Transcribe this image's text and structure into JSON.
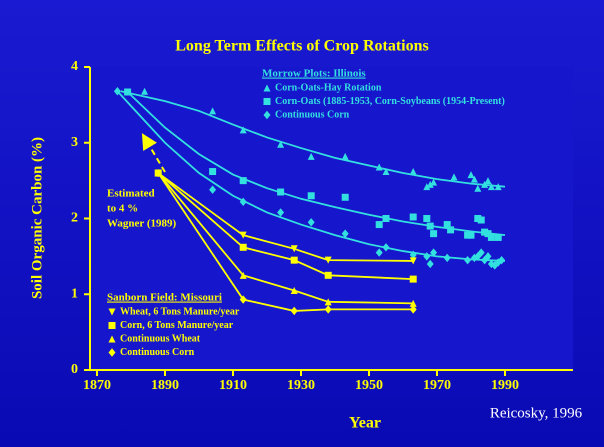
{
  "chart_data": {
    "type": "scatter",
    "title": "Long Term Effects of Crop Rotations",
    "x_label": "Year",
    "y_label": "Soil Organic Carbon (%)",
    "credit": "Reicosky, 1996",
    "annotation": [
      "Estimated",
      "to 4 %",
      "Wagner (1989)"
    ],
    "xlim": [
      1870,
      2010
    ],
    "xticks": [
      1870,
      1890,
      1910,
      1930,
      1950,
      1970,
      1990
    ],
    "ylim": [
      0,
      4
    ],
    "yticks": [
      0,
      1,
      2,
      3,
      4
    ],
    "groups": [
      {
        "title": "Morrow Plots:  Illinois",
        "color": "#33e0e0",
        "series": [
          {
            "name": "Corn-Oats-Hay Rotation",
            "marker": "triangle",
            "x": [
              1884,
              1904,
              1913,
              1924,
              1933,
              1943,
              1953,
              1955,
              1963,
              1967,
              1968,
              1969,
              1975,
              1980,
              1981,
              1982,
              1984,
              1985,
              1986,
              1988
            ],
            "values": [
              3.68,
              3.42,
              3.17,
              2.98,
              2.82,
              2.82,
              2.68,
              2.62,
              2.62,
              2.42,
              2.45,
              2.48,
              2.55,
              2.58,
              2.52,
              2.4,
              2.45,
              2.5,
              2.42,
              2.42
            ],
            "fit_x": [
              1877,
              1890,
              1900,
              1910,
              1920,
              1930,
              1940,
              1950,
              1960,
              1970,
              1980,
              1990
            ],
            "fit_values": [
              3.68,
              3.55,
              3.42,
              3.24,
              3.07,
              2.93,
              2.8,
              2.7,
              2.6,
              2.52,
              2.46,
              2.42
            ]
          },
          {
            "name": "Corn-Oats (1885-1953, Corn-Soybeans (1954-Present)",
            "marker": "square",
            "x": [
              1879,
              1904,
              1913,
              1924,
              1933,
              1943,
              1953,
              1955,
              1963,
              1967,
              1968,
              1969,
              1973,
              1974,
              1979,
              1980,
              1982,
              1983,
              1984,
              1985,
              1986,
              1988
            ],
            "values": [
              3.67,
              2.62,
              2.5,
              2.35,
              2.3,
              2.28,
              1.92,
              2.0,
              2.02,
              2.0,
              1.9,
              1.8,
              1.92,
              1.85,
              1.78,
              1.78,
              2.0,
              1.98,
              1.82,
              1.8,
              1.75,
              1.75
            ],
            "fit_x": [
              1879,
              1890,
              1900,
              1910,
              1920,
              1930,
              1940,
              1950,
              1960,
              1970,
              1980,
              1990
            ],
            "fit_values": [
              3.67,
              3.2,
              2.85,
              2.58,
              2.4,
              2.26,
              2.15,
              2.05,
              1.96,
              1.89,
              1.83,
              1.78
            ]
          },
          {
            "name": "Continuous Corn",
            "marker": "diamond",
            "x": [
              1876,
              1904,
              1913,
              1924,
              1933,
              1943,
              1953,
              1955,
              1963,
              1967,
              1968,
              1969,
              1973,
              1979,
              1981,
              1982,
              1983,
              1984,
              1985,
              1986,
              1987,
              1988,
              1989
            ],
            "values": [
              3.68,
              2.38,
              2.22,
              2.08,
              1.95,
              1.8,
              1.55,
              1.62,
              1.52,
              1.5,
              1.4,
              1.55,
              1.48,
              1.45,
              1.48,
              1.5,
              1.55,
              1.45,
              1.5,
              1.4,
              1.38,
              1.42,
              1.45
            ],
            "fit_x": [
              1876,
              1890,
              1900,
              1910,
              1920,
              1930,
              1940,
              1950,
              1960,
              1970,
              1980,
              1990
            ],
            "fit_values": [
              3.68,
              3.0,
              2.6,
              2.3,
              2.08,
              1.92,
              1.78,
              1.66,
              1.57,
              1.5,
              1.46,
              1.44
            ]
          }
        ]
      },
      {
        "title": "Sanborn Field:  Missouri",
        "color": "#ffff00",
        "series": [
          {
            "name": "Wheat, 6 Tons Manure/year",
            "marker": "triangle-down",
            "x": [
              1888,
              1913,
              1928,
              1938,
              1963
            ],
            "values": [
              2.6,
              1.78,
              1.6,
              1.45,
              1.44
            ]
          },
          {
            "name": "Corn, 6 Tons Manure/year",
            "marker": "square",
            "x": [
              1888,
              1913,
              1928,
              1938,
              1963
            ],
            "values": [
              2.6,
              1.62,
              1.45,
              1.25,
              1.2
            ]
          },
          {
            "name": "Continuous Wheat",
            "marker": "triangle",
            "x": [
              1888,
              1913,
              1928,
              1938,
              1963
            ],
            "values": [
              2.6,
              1.25,
              1.05,
              0.9,
              0.88
            ]
          },
          {
            "name": "Continuous Corn",
            "marker": "diamond",
            "x": [
              1888,
              1913,
              1928,
              1938,
              1963
            ],
            "values": [
              2.6,
              0.93,
              0.78,
              0.8,
              0.8
            ]
          }
        ]
      }
    ]
  }
}
